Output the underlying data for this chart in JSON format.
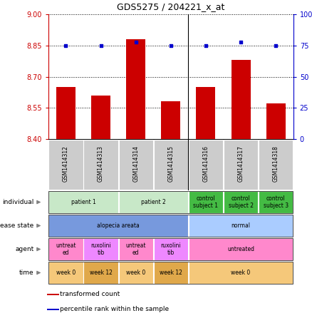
{
  "title": "GDS5275 / 204221_x_at",
  "samples": [
    "GSM1414312",
    "GSM1414313",
    "GSM1414314",
    "GSM1414315",
    "GSM1414316",
    "GSM1414317",
    "GSM1414318"
  ],
  "transformed_count": [
    8.65,
    8.61,
    8.88,
    8.58,
    8.65,
    8.78,
    8.57
  ],
  "percentile_rank": [
    75,
    75,
    78,
    75,
    75,
    78,
    75
  ],
  "ylim_left": [
    8.4,
    9.0
  ],
  "ylim_right": [
    0,
    100
  ],
  "yticks_left": [
    8.4,
    8.55,
    8.7,
    8.85,
    9.0
  ],
  "yticks_right": [
    0,
    25,
    50,
    75,
    100
  ],
  "bar_color": "#cc0000",
  "dot_color": "#0000cc",
  "bar_width": 0.55,
  "annotations": {
    "individual": {
      "label": "individual",
      "groups": [
        {
          "text": "patient 1",
          "spans": [
            0,
            1
          ],
          "color": "#c8e8c8"
        },
        {
          "text": "patient 2",
          "spans": [
            2,
            3
          ],
          "color": "#c8e8c8"
        },
        {
          "text": "control\nsubject 1",
          "spans": [
            4,
            4
          ],
          "color": "#44bb44"
        },
        {
          "text": "control\nsubject 2",
          "spans": [
            5,
            5
          ],
          "color": "#44bb44"
        },
        {
          "text": "control\nsubject 3",
          "spans": [
            6,
            6
          ],
          "color": "#44bb44"
        }
      ]
    },
    "disease_state": {
      "label": "disease state",
      "groups": [
        {
          "text": "alopecia areata",
          "spans": [
            0,
            3
          ],
          "color": "#7799dd"
        },
        {
          "text": "normal",
          "spans": [
            4,
            6
          ],
          "color": "#aaccff"
        }
      ]
    },
    "agent": {
      "label": "agent",
      "groups": [
        {
          "text": "untreat\ned",
          "spans": [
            0,
            0
          ],
          "color": "#ff88cc"
        },
        {
          "text": "ruxolini\ntib",
          "spans": [
            1,
            1
          ],
          "color": "#ee88ff"
        },
        {
          "text": "untreat\ned",
          "spans": [
            2,
            2
          ],
          "color": "#ff88cc"
        },
        {
          "text": "ruxolini\ntib",
          "spans": [
            3,
            3
          ],
          "color": "#ee88ff"
        },
        {
          "text": "untreated",
          "spans": [
            4,
            6
          ],
          "color": "#ff88cc"
        }
      ]
    },
    "time": {
      "label": "time",
      "groups": [
        {
          "text": "week 0",
          "spans": [
            0,
            0
          ],
          "color": "#f5c87a"
        },
        {
          "text": "week 12",
          "spans": [
            1,
            1
          ],
          "color": "#e0a84a"
        },
        {
          "text": "week 0",
          "spans": [
            2,
            2
          ],
          "color": "#f5c87a"
        },
        {
          "text": "week 12",
          "spans": [
            3,
            3
          ],
          "color": "#e0a84a"
        },
        {
          "text": "week 0",
          "spans": [
            4,
            6
          ],
          "color": "#f5c87a"
        }
      ]
    }
  },
  "sample_box_color": "#cccccc",
  "legend": [
    {
      "label": "transformed count",
      "color": "#cc0000"
    },
    {
      "label": "percentile rank within the sample",
      "color": "#0000cc"
    }
  ]
}
